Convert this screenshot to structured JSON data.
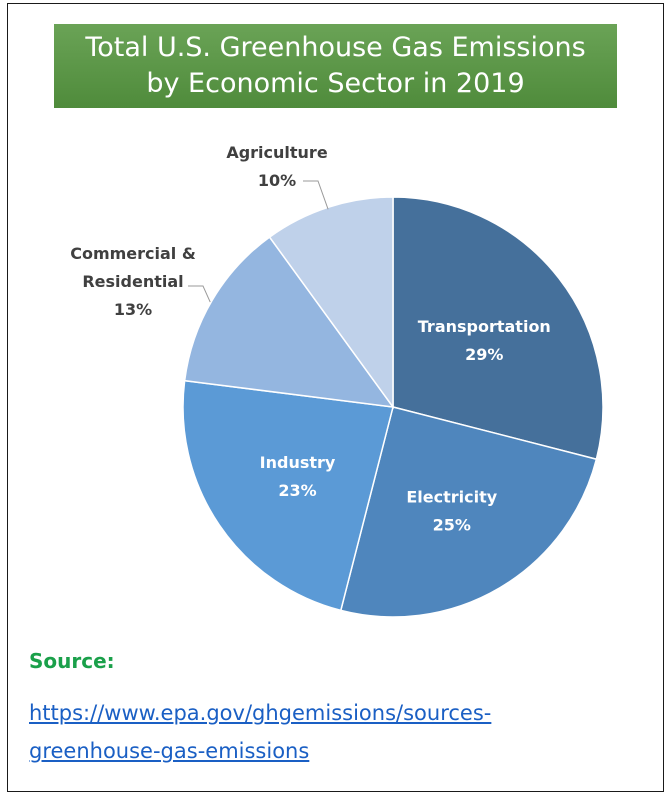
{
  "chart_data": {
    "type": "pie",
    "title_lines": [
      "Total U.S. Greenhouse Gas Emissions",
      "by Economic Sector in 2019"
    ],
    "slices": [
      {
        "label": "Transportation",
        "value": 29,
        "value_label": "29%",
        "color": "#45709b",
        "text_color": "#ffffff"
      },
      {
        "label": "Electricity",
        "value": 25,
        "value_label": "25%",
        "color": "#4f86bd",
        "text_color": "#ffffff"
      },
      {
        "label": "Industry",
        "value": 23,
        "value_label": "23%",
        "color": "#5b9ad6",
        "text_color": "#ffffff"
      },
      {
        "label": "Commercial &",
        "label2": "Residential",
        "value": 13,
        "value_label": "13%",
        "color": "#94b6e0",
        "text_color": "#404040"
      },
      {
        "label": "Agriculture",
        "value": 10,
        "value_label": "10%",
        "color": "#bfd1ea",
        "text_color": "#404040"
      }
    ]
  },
  "source": {
    "label": "Source:",
    "link_line1": "https://www.epa.gov/ghgemissions/sources-",
    "link_line2": "greenhouse-gas-emissions"
  }
}
